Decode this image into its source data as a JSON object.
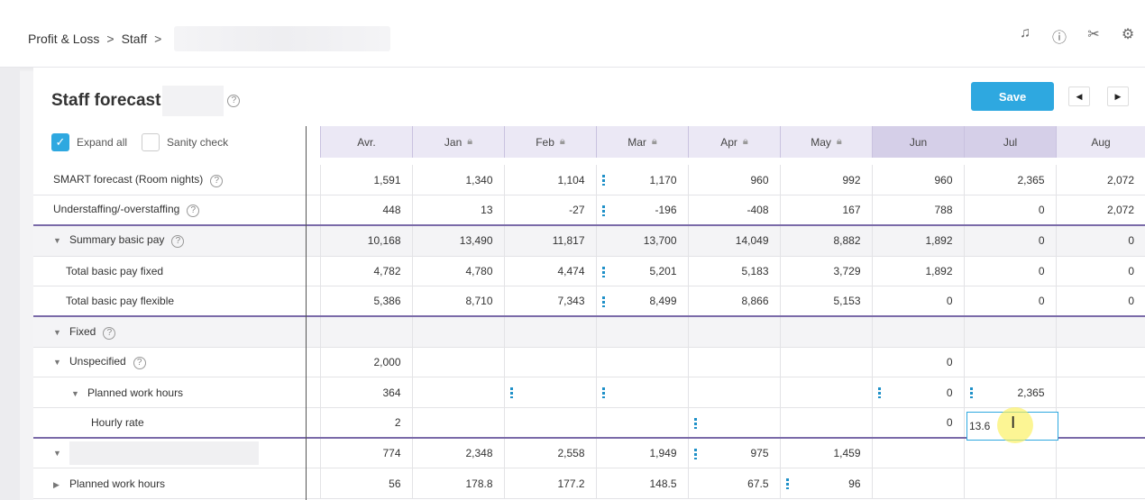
{
  "breadcrumb": {
    "item1": "Profit & Loss",
    "item2": "Staff",
    "sep": ">"
  },
  "top_icons": [
    "bell-icon",
    "help-icon",
    "tools-icon",
    "gear-icon"
  ],
  "page": {
    "title": "Staff forecast",
    "save": "Save",
    "prev": "◀",
    "next": "▶"
  },
  "toolbar": {
    "expand_all": "Expand all",
    "sanity_check": "Sanity check"
  },
  "columns": [
    "Avr.",
    "Jan",
    "Feb",
    "Mar",
    "Apr",
    "May",
    "Jun",
    "Jul",
    "Aug"
  ],
  "rows": [
    {
      "label": "SMART forecast (Room nights)",
      "vals": [
        "1,591",
        "1,340",
        "1,104",
        "1,170",
        "960",
        "992",
        "960",
        "2,365",
        "2,072"
      ]
    },
    {
      "label": "Understaffing/-overstaffing",
      "vals": [
        "448",
        "13",
        "-27",
        "-196",
        "-408",
        "167",
        "788",
        "0",
        "2,072"
      ]
    },
    {
      "label": "Summary basic pay",
      "vals": [
        "10,168",
        "13,490",
        "11,817",
        "13,700",
        "14,049",
        "8,882",
        "1,892",
        "0",
        "0"
      ]
    },
    {
      "label": "Total basic pay fixed",
      "vals": [
        "4,782",
        "4,780",
        "4,474",
        "5,201",
        "5,183",
        "3,729",
        "1,892",
        "0",
        "0"
      ]
    },
    {
      "label": "Total basic pay flexible",
      "vals": [
        "5,386",
        "8,710",
        "7,343",
        "8,499",
        "8,866",
        "5,153",
        "0",
        "0",
        "0"
      ]
    },
    {
      "label": "Fixed",
      "vals": [
        "",
        "",
        "",
        "",
        "",
        "",
        "",
        "",
        ""
      ]
    },
    {
      "label": "Unspecified",
      "vals": [
        "2,000",
        "",
        "",
        "",
        "",
        "",
        "0",
        "",
        ""
      ]
    },
    {
      "label": "Planned work hours",
      "vals": [
        "364",
        "",
        "",
        "",
        "",
        "",
        "0",
        "2,365",
        ""
      ]
    },
    {
      "label": "Hourly rate",
      "vals": [
        "2",
        "",
        "",
        "",
        "",
        "",
        "0",
        "",
        ""
      ]
    },
    {
      "label": "",
      "vals": [
        "774",
        "2,348",
        "2,558",
        "1,949",
        "975",
        "1,459",
        "",
        "",
        ""
      ]
    },
    {
      "label": "Planned work hours",
      "vals": [
        "56",
        "178.8",
        "177.2",
        "148.5",
        "67.5",
        "96",
        "",
        "",
        ""
      ]
    }
  ],
  "editing": {
    "value": "13.6"
  },
  "colors": {
    "accent": "#2ea8e0",
    "header_bg": "#ebe8f5",
    "future_header_bg": "#d5cfe8",
    "group_line": "#7a6aa8"
  }
}
